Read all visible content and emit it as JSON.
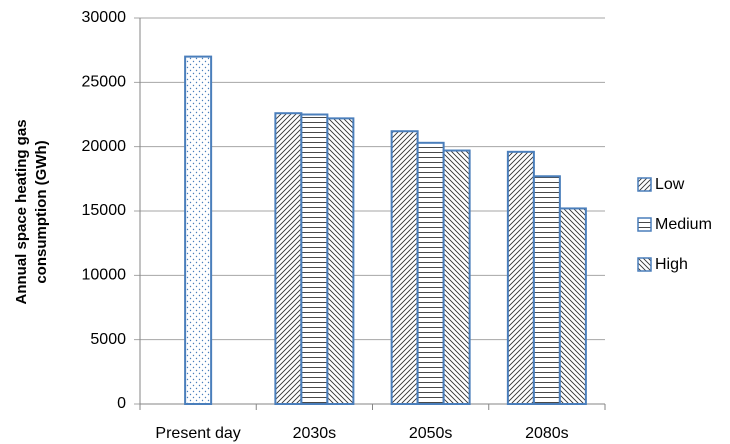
{
  "chart_data": {
    "type": "bar",
    "y_label": [
      "Annual space heating gas",
      "consumption (GWh)"
    ],
    "categories": [
      "Present day",
      "2030s",
      "2050s",
      "2080s"
    ],
    "series": [
      {
        "color": "#4a7ebb",
        "pattern": "dots",
        "values": [
          27000,
          null,
          null,
          null
        ]
      },
      {
        "name": "Low",
        "color": "#4a7ebb",
        "pattern": "diagonal-up",
        "values": [
          null,
          22600,
          21200,
          19600
        ]
      },
      {
        "name": "Medium",
        "color": "#4a7ebb",
        "pattern": "horizontal",
        "values": [
          null,
          22500,
          20300,
          17700
        ]
      },
      {
        "name": "High",
        "color": "#4a7ebb",
        "pattern": "diagonal-down",
        "values": [
          null,
          22200,
          19700,
          15200
        ]
      }
    ],
    "ylim": [
      0,
      30000
    ],
    "yticks": [
      0,
      5000,
      10000,
      15000,
      20000,
      25000,
      30000
    ],
    "grid": true,
    "legend": "right"
  }
}
